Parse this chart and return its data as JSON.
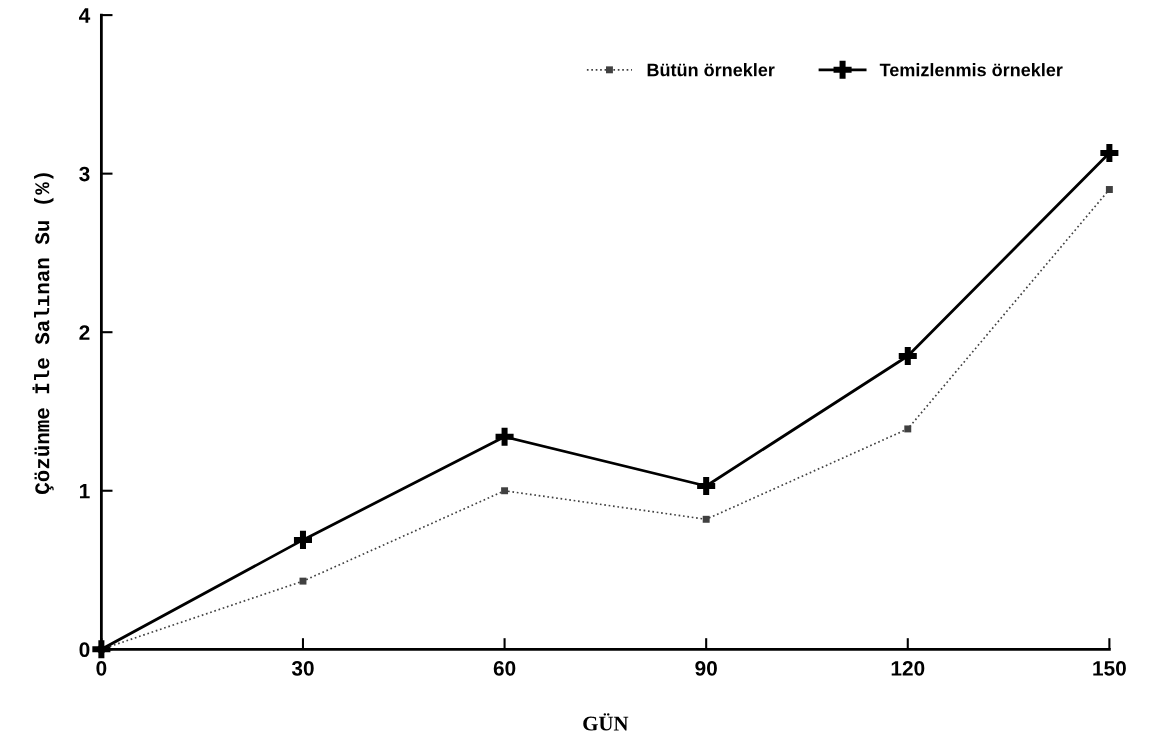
{
  "chart_data": {
    "type": "line",
    "xlabel": "GÜN",
    "ylabel": "Çözünme İle Salınan Su (%)",
    "x": [
      0,
      30,
      60,
      90,
      120,
      150
    ],
    "series": [
      {
        "name": "Bütün örnekler",
        "color": "#404040",
        "values": [
          0,
          0.43,
          1.0,
          0.82,
          1.39,
          2.9
        ],
        "marker": "square",
        "line_style": "dotted"
      },
      {
        "name": "Temizlenmis örnekler",
        "color": "#000000",
        "values": [
          0,
          0.69,
          1.34,
          1.03,
          1.85,
          3.13
        ],
        "marker": "cross",
        "line_style": "solid"
      }
    ],
    "xlim": [
      0,
      150
    ],
    "xticks": [
      0,
      30,
      60,
      90,
      120,
      150
    ],
    "ylim": [
      0,
      4
    ],
    "yticks": [
      0,
      1,
      2,
      3,
      4
    ],
    "grid": false,
    "legend": "top right"
  }
}
